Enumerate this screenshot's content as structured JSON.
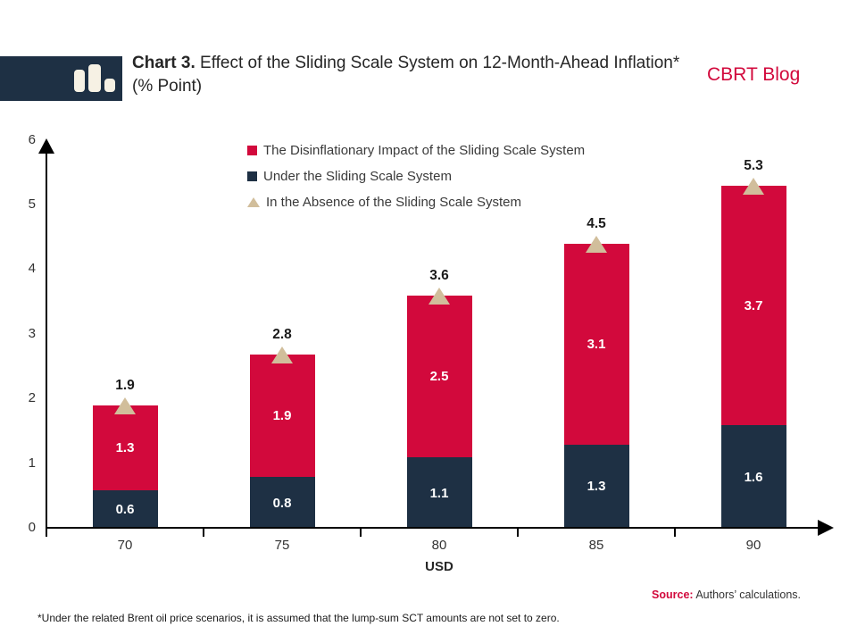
{
  "header": {
    "title_prefix": "Chart 3.",
    "title_rest": " Effect of the Sliding Scale System on 12-Month-Ahead Inflation* (% Point)",
    "brand": "CBRT Blog"
  },
  "colors": {
    "red": "#D2093C",
    "navy": "#1E3044",
    "tan": "#D1BE9B"
  },
  "legend": [
    {
      "label": "The Disinflationary Impact of the Sliding Scale System",
      "marker": "red-square"
    },
    {
      "label": "Under the Sliding Scale System",
      "marker": "navy-square"
    },
    {
      "label": "In the Absence of the Sliding Scale System",
      "marker": "tan-triangle"
    }
  ],
  "chart_data": {
    "type": "bar",
    "stacked": true,
    "categories": [
      "70",
      "75",
      "80",
      "85",
      "90"
    ],
    "series": [
      {
        "name": "Under the Sliding Scale System",
        "color": "#1E3044",
        "values": [
          0.6,
          0.8,
          1.1,
          1.3,
          1.6
        ]
      },
      {
        "name": "The Disinflationary Impact of the Sliding Scale System",
        "color": "#D2093C",
        "values": [
          1.3,
          1.9,
          2.5,
          3.1,
          3.7
        ]
      }
    ],
    "totals": [
      1.9,
      2.8,
      3.6,
      4.5,
      5.3
    ],
    "marker_series": {
      "name": "In the Absence of the Sliding Scale System",
      "color": "#D1BE9B",
      "values": [
        1.9,
        2.8,
        3.6,
        4.5,
        5.3
      ]
    },
    "xlabel": "USD",
    "ylabel": "",
    "ylim": [
      0,
      6
    ],
    "yticks": [
      0,
      1,
      2,
      3,
      4,
      5,
      6
    ],
    "grid": false,
    "legend_position": "top-center"
  },
  "source": {
    "label": "Source:",
    "text": " Authors’ calculations."
  },
  "footnote": "*Under the related Brent oil price scenarios, it is assumed that the lump-sum SCT amounts are not set to zero."
}
